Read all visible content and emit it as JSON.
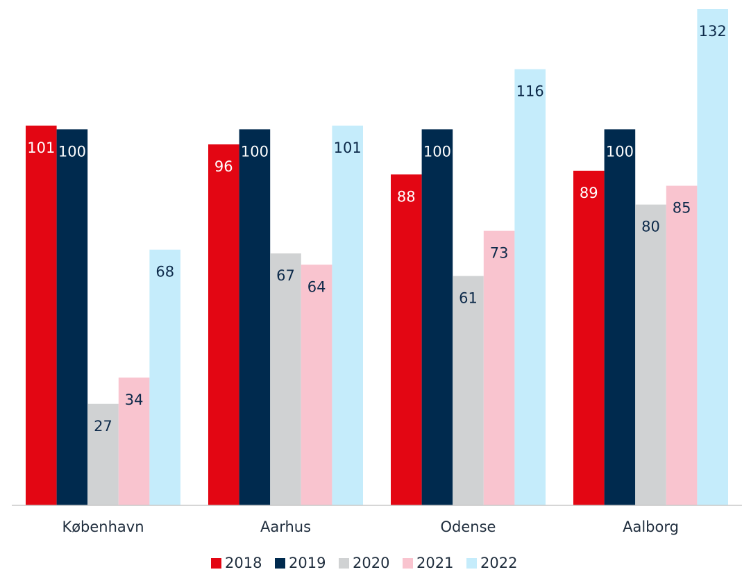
{
  "chart_data": {
    "type": "bar",
    "categories": [
      "København",
      "Aarhus",
      "Odense",
      "Aalborg"
    ],
    "series": [
      {
        "name": "2018",
        "color": "#e30613",
        "values": [
          101,
          96,
          88,
          89
        ]
      },
      {
        "name": "2019",
        "color": "#002a4e",
        "values": [
          100,
          100,
          100,
          100
        ]
      },
      {
        "name": "2020",
        "color": "#d0d2d3",
        "values": [
          27,
          67,
          61,
          80
        ]
      },
      {
        "name": "2021",
        "color": "#f9c4cf",
        "values": [
          34,
          64,
          73,
          85
        ]
      },
      {
        "name": "2022",
        "color": "#c5ecfb",
        "values": [
          68,
          101,
          116,
          132
        ]
      }
    ]
  }
}
